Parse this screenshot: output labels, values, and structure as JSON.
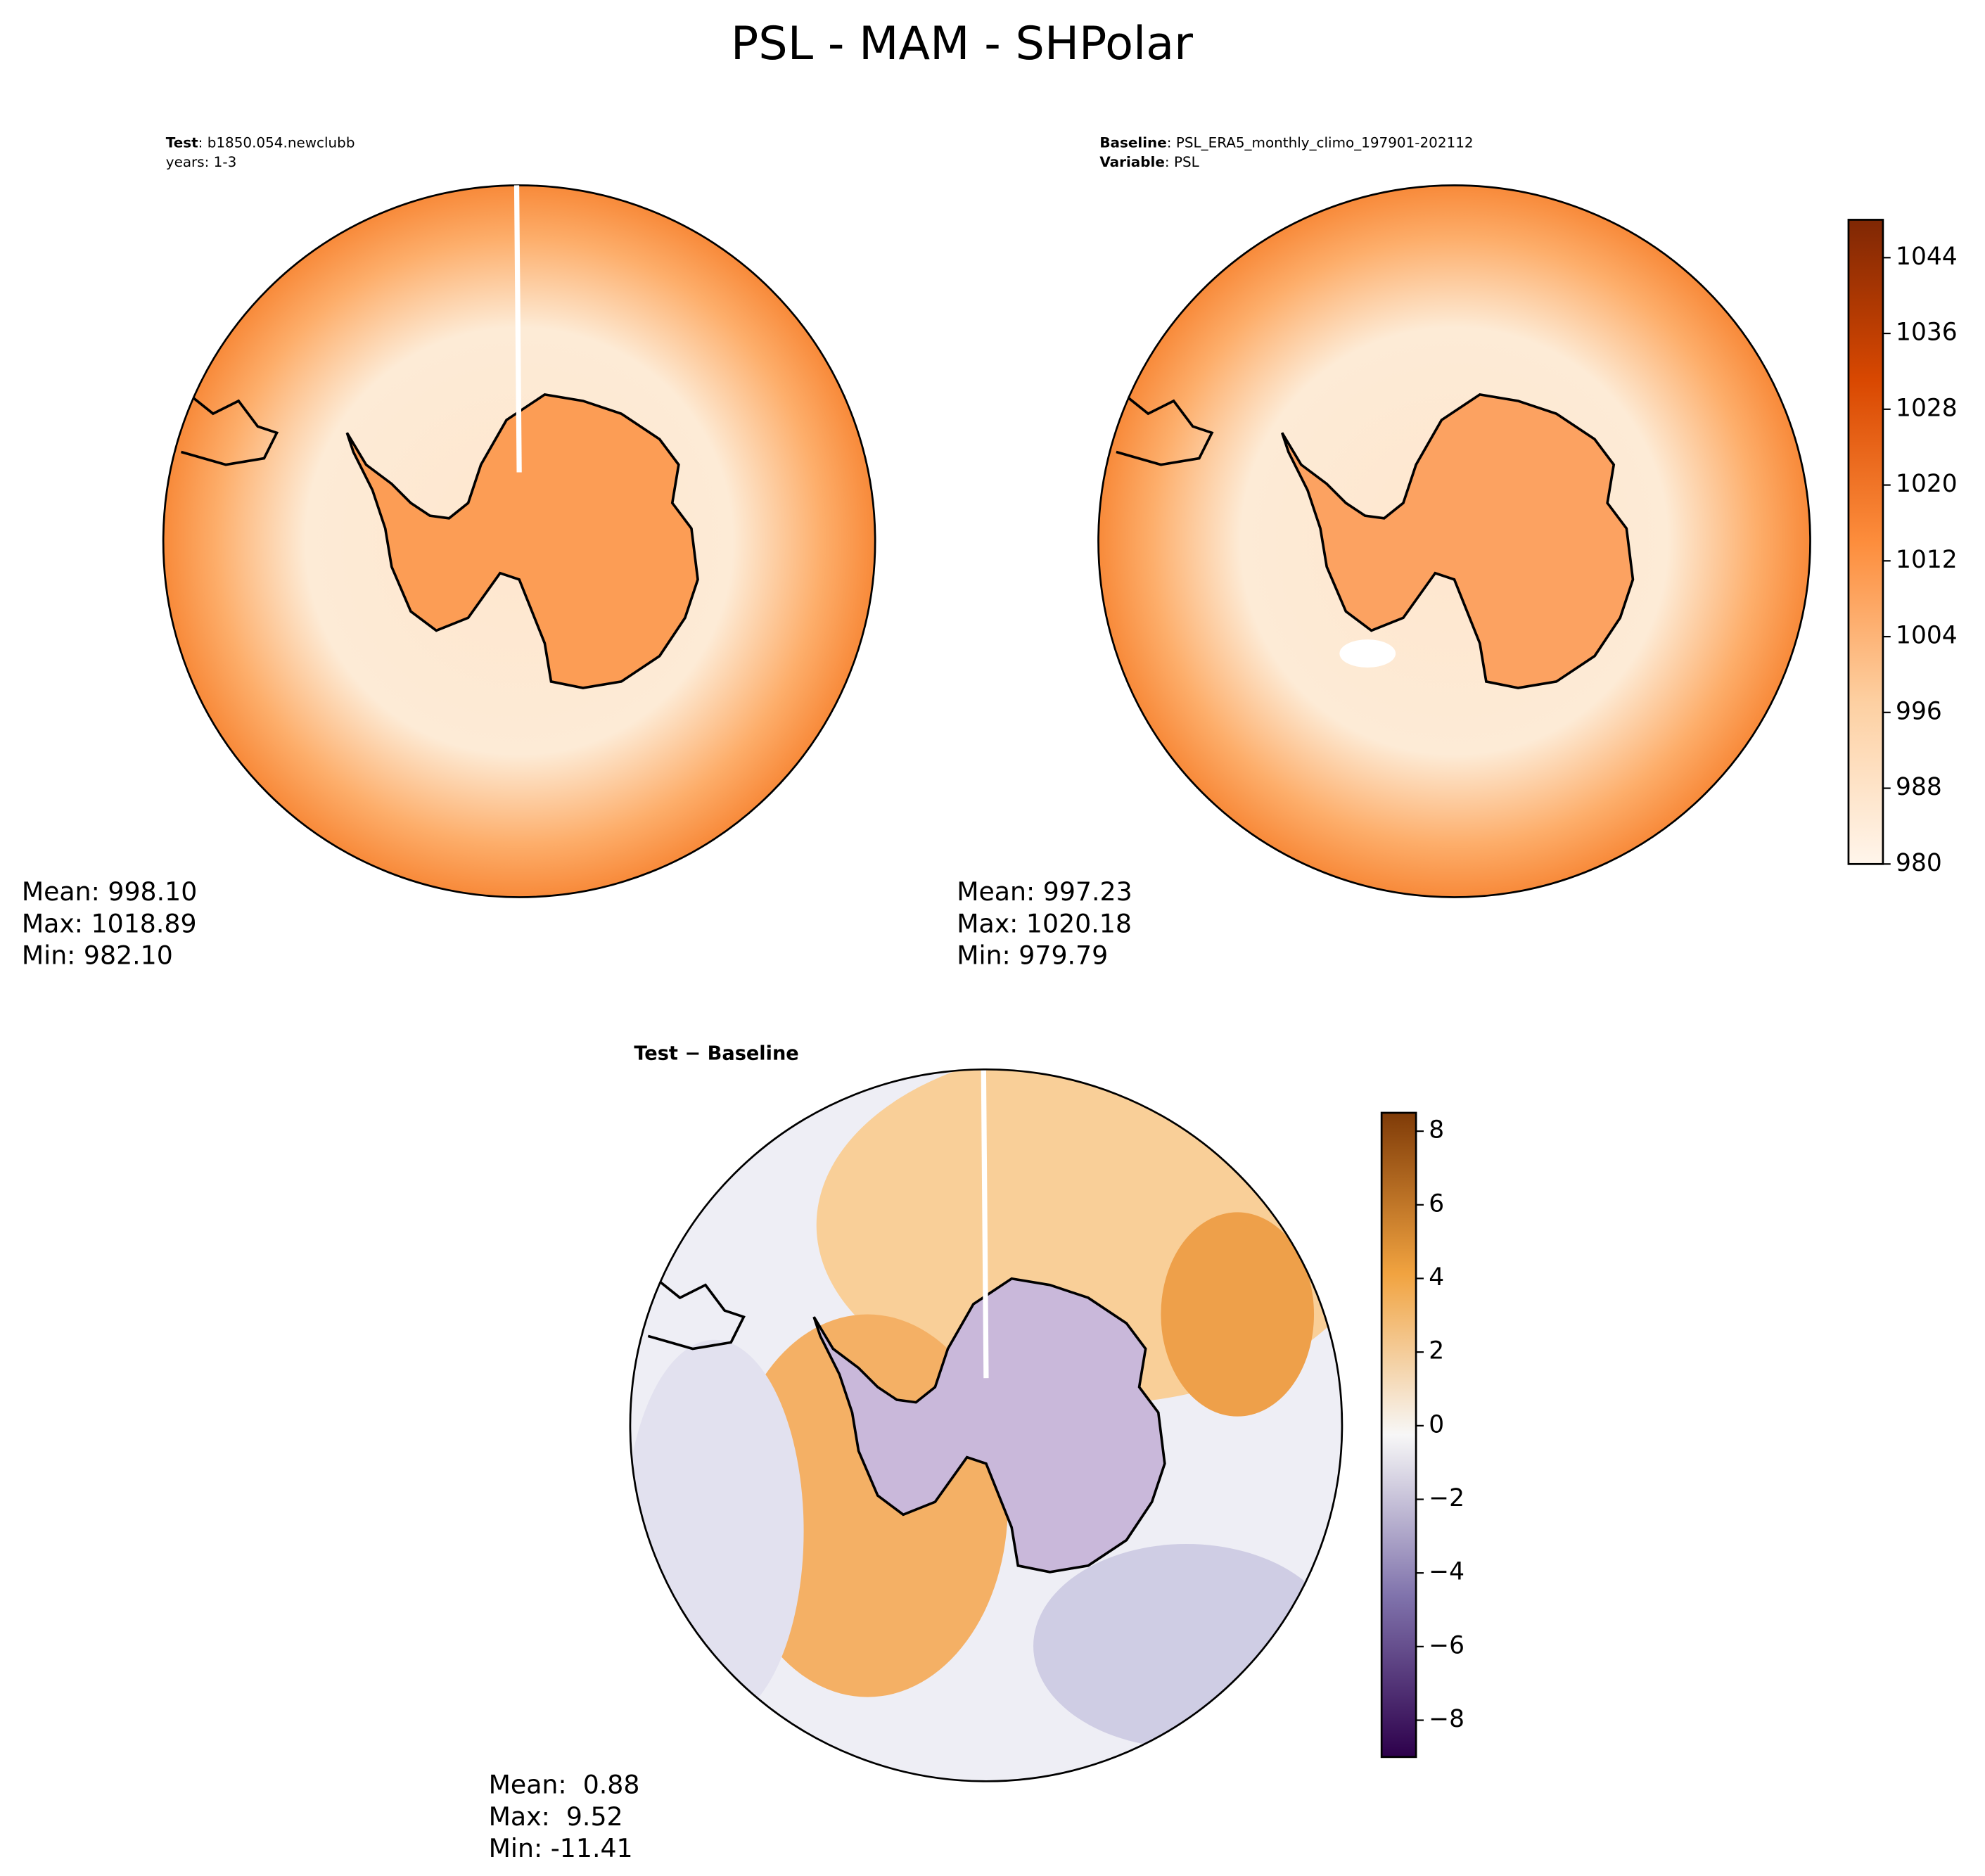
{
  "title": "PSL - MAM - SHPolar",
  "panels": [
    {
      "header": [
        {
          "key": "Test",
          "rest": ": b1850.054.newclubb"
        },
        {
          "rest": "years: 1-3"
        }
      ],
      "stats": [
        "Mean: 998.10",
        "Max: 1018.89",
        "Min: 982.10"
      ]
    },
    {
      "header": [
        {
          "key": "Baseline",
          "rest": ": PSL_ERA5_monthly_climo_197901-202112"
        },
        {
          "key": "Variable",
          "rest": ": PSL"
        }
      ],
      "stats": [
        "Mean: 997.23",
        "Max: 1020.18",
        "Min: 979.79"
      ]
    },
    {
      "header": [
        {
          "key": "Test − Baseline"
        }
      ],
      "stats": [
        "Mean:  0.88",
        "Max:  9.52",
        "Min: -11.41"
      ]
    }
  ],
  "colorbars": [
    {
      "lim": [
        980,
        1048
      ],
      "ticks": [
        980,
        988,
        996,
        1004,
        1012,
        1020,
        1028,
        1036,
        1044
      ],
      "colors": [
        "#fff5eb",
        "#fdd0a2",
        "#fd8d3c",
        "#d94801",
        "#7f2704"
      ]
    },
    {
      "lim": [
        -9,
        8.5
      ],
      "ticks": [
        {
          "value": -8,
          "label": "−8"
        },
        {
          "value": -6,
          "label": "−6"
        },
        {
          "value": -4,
          "label": "−4"
        },
        {
          "value": -2,
          "label": "−2"
        },
        0,
        2,
        4,
        6,
        8
      ],
      "colors": [
        "#2d004b",
        "#8073ac",
        "#f7f7f7",
        "#f1a340",
        "#7f3b08"
      ]
    }
  ]
}
